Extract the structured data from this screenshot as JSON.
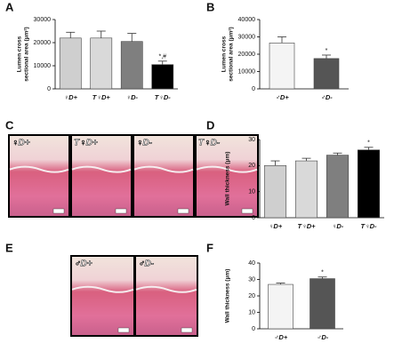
{
  "panel_labels": [
    "A",
    "B",
    "C",
    "D",
    "E",
    "F"
  ],
  "images": [
    {
      "labels": [
        "♀D+",
        "T♀D+",
        "♀D-",
        "T♀D-"
      ]
    },
    {
      "labels": [
        "♂D+",
        "♂D-"
      ]
    }
  ],
  "chart_data": [
    {
      "type": "bar",
      "y_label_lines": [
        "Lumen cross",
        "sectional area (μm²)"
      ],
      "categories": [
        "♀D+",
        "T♀D+",
        "♀D-",
        "T♀D-"
      ],
      "values": [
        22000,
        22000,
        20500,
        10500
      ],
      "errors": [
        2500,
        3000,
        3500,
        1500
      ],
      "annotations": [
        null,
        null,
        null,
        "*,#"
      ],
      "colors": [
        "#cfcfcf",
        "#d9d9d9",
        "#7f7f7f",
        "#000000"
      ],
      "ylim": [
        0,
        30000
      ],
      "yticks": [
        0,
        10000,
        20000,
        30000
      ]
    },
    {
      "type": "bar",
      "y_label_lines": [
        "Lumen cross",
        "sectional area (μm²)"
      ],
      "categories": [
        "♂D+",
        "♂D-"
      ],
      "values": [
        26500,
        17500
      ],
      "errors": [
        3500,
        2000
      ],
      "annotations": [
        null,
        "*"
      ],
      "colors": [
        "#f4f4f4",
        "#555555"
      ],
      "ylim": [
        0,
        40000
      ],
      "yticks": [
        0,
        10000,
        20000,
        30000,
        40000
      ]
    },
    {
      "type": "bar",
      "y_label_lines": [
        "Wall thickness (μm)"
      ],
      "categories": [
        "♀D+",
        "T♀D+",
        "♀D-",
        "T♀D-"
      ],
      "values": [
        20,
        21.8,
        24,
        26
      ],
      "errors": [
        1.8,
        1,
        0.8,
        1
      ],
      "annotations": [
        null,
        null,
        null,
        "*"
      ],
      "colors": [
        "#cfcfcf",
        "#d9d9d9",
        "#7f7f7f",
        "#000000"
      ],
      "ylim": [
        0,
        30
      ],
      "yticks": [
        0,
        10,
        20,
        30
      ]
    },
    {
      "type": "bar",
      "y_label_lines": [
        "Wall thickness (μm)"
      ],
      "categories": [
        "♂D+",
        "♂D-"
      ],
      "values": [
        27,
        30.5
      ],
      "errors": [
        0.8,
        1
      ],
      "annotations": [
        null,
        "*"
      ],
      "colors": [
        "#f4f4f4",
        "#555555"
      ],
      "ylim": [
        0,
        40
      ],
      "yticks": [
        0,
        10,
        20,
        30,
        40
      ]
    }
  ]
}
